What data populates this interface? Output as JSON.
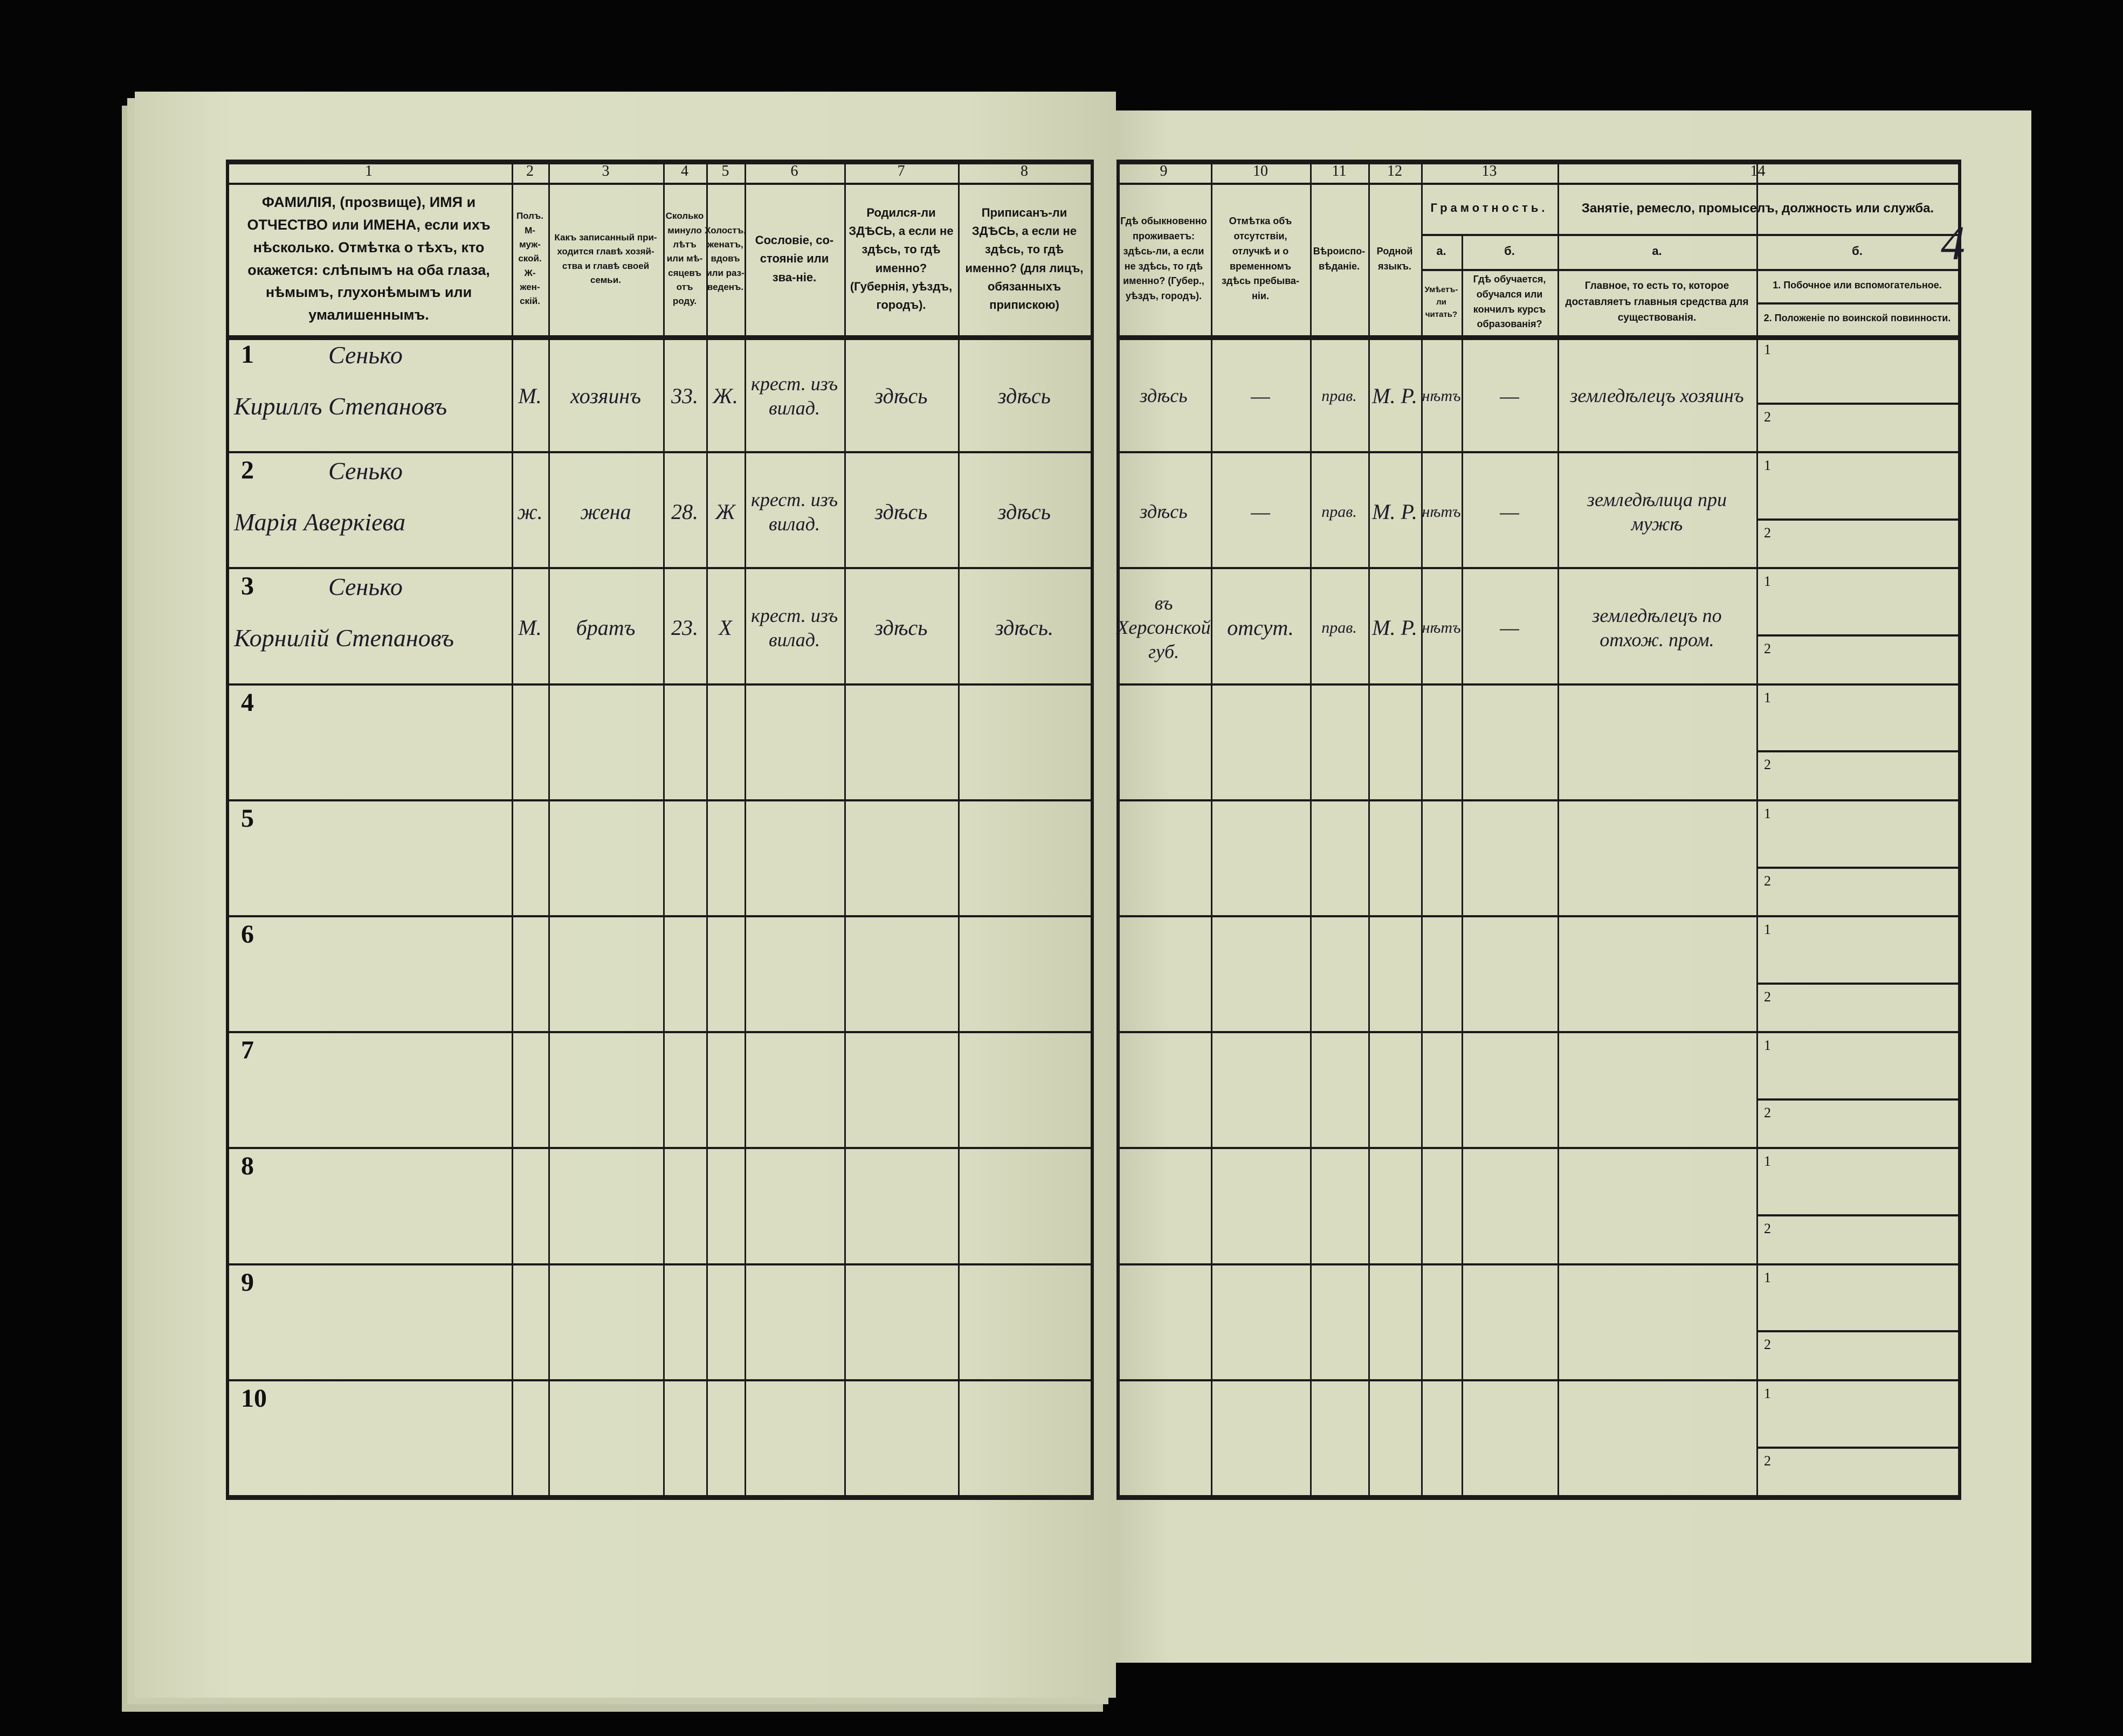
{
  "page_number_handwritten": "4",
  "left_page": {
    "column_numbers": [
      "1",
      "2",
      "3",
      "4",
      "5",
      "6",
      "7",
      "8"
    ],
    "headers": [
      "ФАМИЛІЯ, (прозвище), ИМЯ и ОТЧЕСТВО или ИМЕНА, если ихъ нѣсколько. Отмѣтка о тѣхъ, кто окажется: слѣпымъ на оба глаза, нѣмымъ, глухонѣмымъ или умалишеннымъ.",
      "Полъ. М-муж-ской. Ж-жен-скій.",
      "Какъ записанный при-ходится главѣ хозяй-ства и главѣ своей семьи.",
      "Сколько минуло лѣтъ или мѣ-сяцевъ отъ роду.",
      "Холостъ, женатъ, вдовъ или раз-веденъ.",
      "Сословіе, со-стояніе или зва-ніе.",
      "Родился-ли ЗДѢСЬ, а если не здѣсь, то гдѣ именно? (Губернія, уѣздъ, городъ).",
      "Приписанъ-ли ЗДѢСЬ, а если не здѣсь, то гдѣ именно? (для лицъ, обязанныхъ припискою)"
    ]
  },
  "right_page": {
    "column_numbers": [
      "9",
      "10",
      "11",
      "12",
      "13",
      "14"
    ],
    "headers": [
      "Гдѣ обыкновенно проживаетъ: здѣсь-ли, а если не здѣсь, то гдѣ именно? (Губер., уѣздъ, городъ).",
      "Отмѣтка объ отсутствіи, отлучкѣ и о временномъ здѣсь пребыва-ніи.",
      "Вѣроиспо-вѣданіе.",
      "Родной языкъ."
    ],
    "literacy": {
      "title": "Грамотность.",
      "a_label": "а.",
      "b_label": "б.",
      "a": "Умѣетъ-ли читать?",
      "b": "Гдѣ обучается, обучался или кончилъ курсъ образованія?"
    },
    "occupation": {
      "title": "Занятіе, ремесло, промыселъ, должность или служба.",
      "a_label": "а.",
      "b_label": "б.",
      "a": "Главное, то есть то, которое доставляетъ главныя средства для существованія.",
      "b1": "1. Побочное или вспомогательное.",
      "b2": "2. Положеніе по воинской повинности."
    },
    "sub_labels": [
      "1",
      "2"
    ]
  },
  "rows": [
    {
      "n": "1",
      "surname": "Сенько",
      "name": "Кириллъ Степановъ",
      "sex": "М.",
      "relation": "хозяинъ",
      "age": "33.",
      "marital": "Ж.",
      "estate": "крест. изъ вилад.",
      "born": "здѣсь",
      "registered": "здѣсь",
      "residence": "здѣсь",
      "absence": "—",
      "religion": "прав.",
      "language": "М. Р.",
      "reads": "нѣтъ",
      "education": "—",
      "occupation": "земледѣлецъ хозяинъ"
    },
    {
      "n": "2",
      "surname": "Сенько",
      "name": "Марія Аверкіева",
      "sex": "ж.",
      "relation": "жена",
      "age": "28.",
      "marital": "Ж",
      "estate": "крест. изъ вилад.",
      "born": "здѣсь",
      "registered": "здѣсь",
      "residence": "здѣсь",
      "absence": "—",
      "religion": "прав.",
      "language": "М. Р.",
      "reads": "нѣтъ",
      "education": "—",
      "occupation": "земледѣлица при мужѣ"
    },
    {
      "n": "3",
      "surname": "Сенько",
      "name": "Корнилій Степановъ",
      "sex": "М.",
      "relation": "братъ",
      "age": "23.",
      "marital": "Х",
      "estate": "крест. изъ вилад.",
      "born": "здѣсь",
      "registered": "здѣсь.",
      "residence": "въ Херсонской губ.",
      "absence": "отсут.",
      "religion": "прав.",
      "language": "М. Р.",
      "reads": "нѣтъ",
      "education": "—",
      "occupation": "земледѣлецъ по отхож. пром."
    },
    {
      "n": "4"
    },
    {
      "n": "5"
    },
    {
      "n": "6"
    },
    {
      "n": "7"
    },
    {
      "n": "8"
    },
    {
      "n": "9"
    },
    {
      "n": "10"
    }
  ],
  "colors": {
    "paper": "#d8dbbf",
    "ink_print": "#141414",
    "ink_hand": "#1c1c28",
    "background": "#050505"
  }
}
